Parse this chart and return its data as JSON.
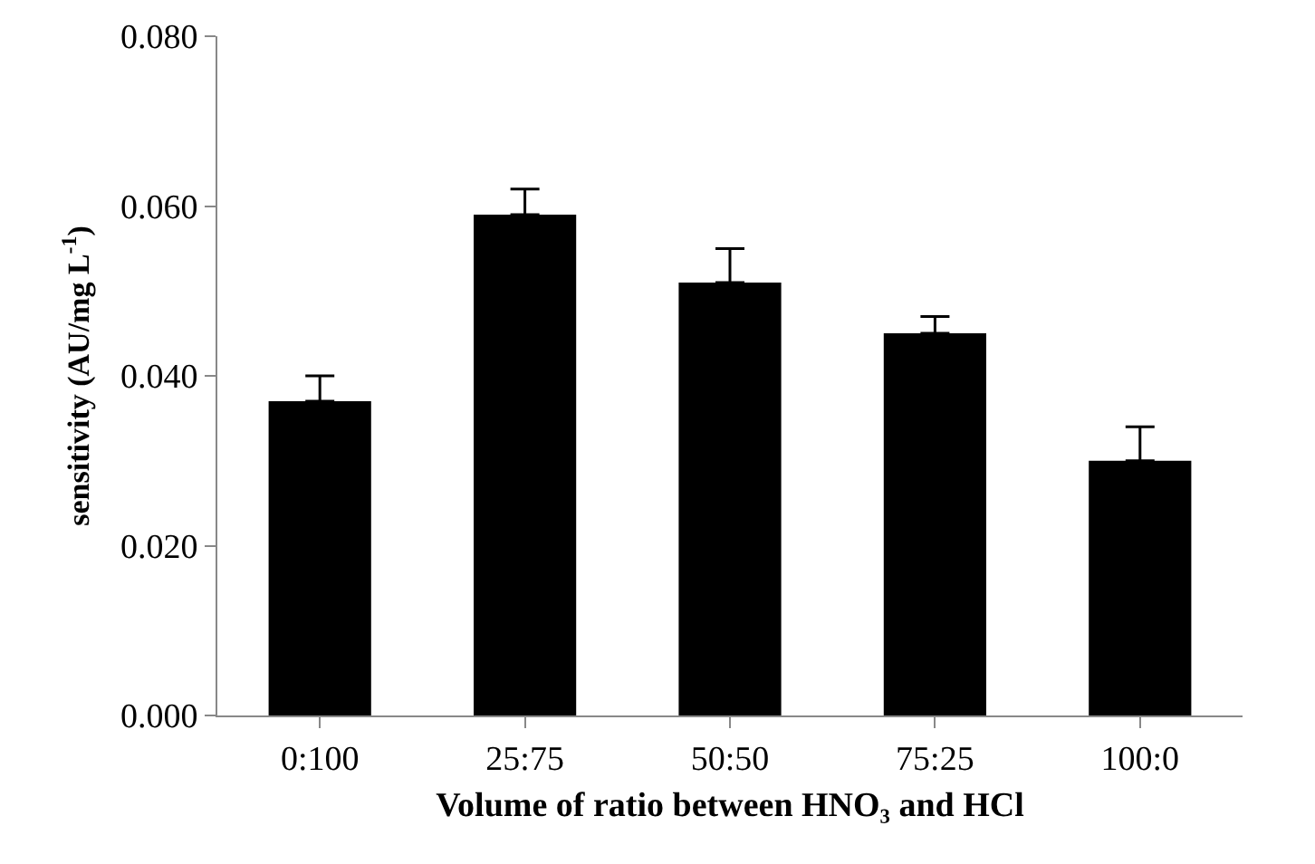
{
  "chart_data": {
    "type": "bar",
    "xlabel": "Volume of ratio between HNO₃ and HCl",
    "ylabel": "sensitivity (AU/mg L$^{-1}$)",
    "categories": [
      "0:100",
      "25:75",
      "50:50",
      "75:25",
      "100:0"
    ],
    "values": [
      0.037,
      0.059,
      0.051,
      0.045,
      0.03
    ],
    "errors": [
      [
        0.037,
        0.04
      ],
      [
        0.059,
        0.062
      ],
      [
        0.051,
        0.055
      ],
      [
        0.045,
        0.047
      ],
      [
        0.03,
        0.034
      ]
    ],
    "color": "#000000",
    "ylim": [
      0,
      0.08
    ],
    "yticks": [
      {
        "value": 0,
        "label": "0.000"
      },
      {
        "value": 0.02,
        "label": "0.020"
      },
      {
        "value": 0.04,
        "label": "0.040"
      },
      {
        "value": 0.06,
        "label": "0.060"
      },
      {
        "value": 0.08,
        "label": "0.080"
      }
    ],
    "grid": false
  }
}
